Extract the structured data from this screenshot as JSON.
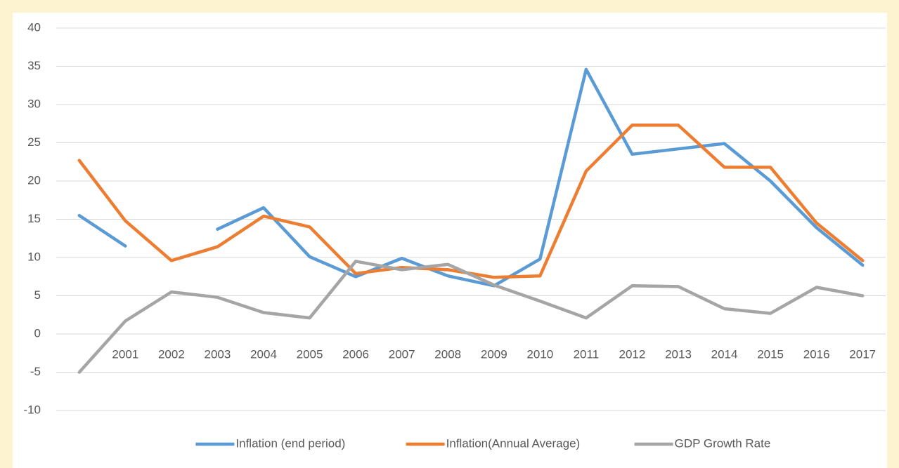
{
  "chart_data": {
    "type": "line",
    "categories": [
      null,
      "2001",
      "2002",
      "2003",
      "2004",
      "2005",
      "2006",
      "2007",
      "2008",
      "2009",
      "2010",
      "2011",
      "2012",
      "2013",
      "2014",
      "2015",
      "2016",
      "2017"
    ],
    "series": [
      {
        "name": "Inflation (end period)",
        "color": "#5b9bd5",
        "values": [
          15.5,
          11.5,
          null,
          13.7,
          16.5,
          10.1,
          7.5,
          9.9,
          7.6,
          6.3,
          9.8,
          34.6,
          23.5,
          24.2,
          24.9,
          20.0,
          13.9,
          9.0
        ]
      },
      {
        "name": "Inflation(Annual Average)",
        "color": "#ed7d31",
        "values": [
          22.7,
          14.8,
          9.6,
          11.4,
          15.4,
          14.0,
          7.9,
          8.7,
          8.4,
          7.4,
          7.6,
          21.3,
          27.3,
          27.3,
          21.8,
          21.8,
          14.5,
          9.6
        ]
      },
      {
        "name": "GDP Growth Rate",
        "color": "#a5a5a5",
        "values": [
          -5.0,
          1.7,
          5.5,
          4.8,
          2.8,
          2.1,
          9.5,
          8.4,
          9.1,
          6.4,
          4.3,
          2.1,
          6.3,
          6.2,
          3.3,
          2.7,
          6.1,
          5.0
        ]
      }
    ],
    "ylim": [
      -10,
      40
    ],
    "yticks": [
      -10,
      -5,
      0,
      5,
      10,
      15,
      20,
      25,
      30,
      35,
      40
    ],
    "grid": true,
    "legend": "bottom"
  }
}
